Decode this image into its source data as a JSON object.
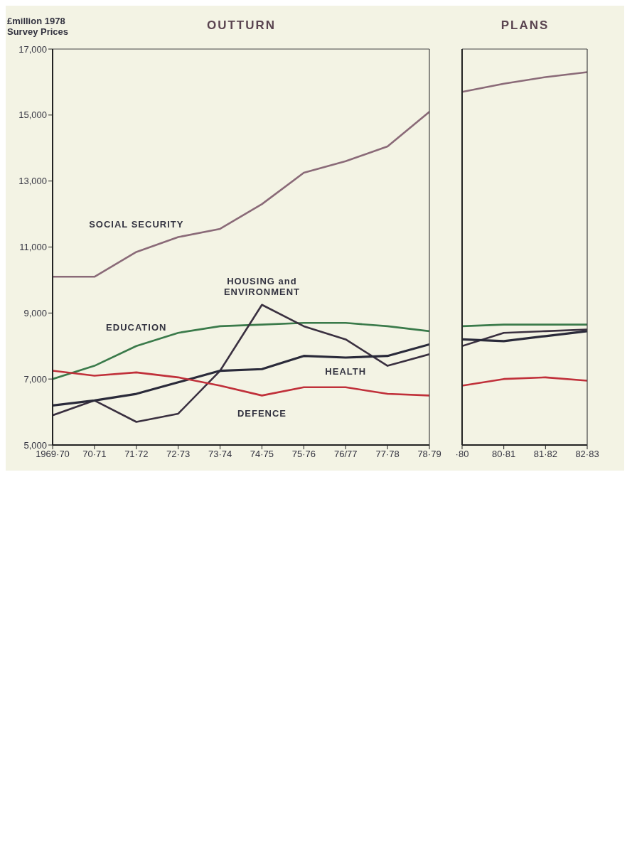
{
  "chart_data": [
    {
      "type": "line",
      "title": "OUTTURN",
      "ylabel": "£million 1978 Survey Prices",
      "categories": [
        "1969·70",
        "70·71",
        "71·72",
        "72·73",
        "73·74",
        "74·75",
        "75·76",
        "76/77",
        "77·78",
        "78·79"
      ],
      "ylim": [
        5000,
        17000
      ],
      "yticks": [
        {
          "value": 5000,
          "label": "5,000"
        },
        {
          "value": 7000,
          "label": "7,000"
        },
        {
          "value": 9000,
          "label": "9,000"
        },
        {
          "value": 11000,
          "label": "11,000"
        },
        {
          "value": 13000,
          "label": "13,000"
        },
        {
          "value": 15000,
          "label": "15,000"
        },
        {
          "value": 17000,
          "label": "17,000"
        }
      ],
      "marker": "none",
      "series": [
        {
          "name": "SOCIAL SECURITY",
          "color": "#8a6a78",
          "values": [
            10100,
            10100,
            10850,
            11300,
            11550,
            12300,
            13250,
            13600,
            14050,
            15100
          ]
        },
        {
          "name": "EDUCATION",
          "color": "#3a7a4a",
          "values": [
            7000,
            7400,
            8000,
            8400,
            8600,
            8650,
            8700,
            8700,
            8600,
            8450
          ]
        },
        {
          "name": "HOUSING and ENVIRONMENT",
          "color": "#3a3040",
          "values": [
            5900,
            6350,
            5700,
            5950,
            7250,
            9250,
            8600,
            8200,
            7400,
            7750
          ]
        },
        {
          "name": "HEALTH",
          "color": "#2a2a3a",
          "values": [
            6200,
            6350,
            6550,
            6900,
            7250,
            7300,
            7700,
            7650,
            7700,
            8050
          ]
        },
        {
          "name": "DEFENCE",
          "color": "#c0303a",
          "values": [
            7250,
            7100,
            7200,
            7050,
            6800,
            6500,
            6750,
            6750,
            6550,
            6500
          ]
        }
      ]
    },
    {
      "type": "line",
      "title": "PLANS",
      "categories": [
        "·80",
        "80·81",
        "81·82",
        "82·83"
      ],
      "ylim": [
        5000,
        17000
      ],
      "tick_labels": "x",
      "marker": "none",
      "series": [
        {
          "color": "#8a6a78",
          "values": [
            15700,
            15950,
            16150,
            16300
          ]
        },
        {
          "color": "#3a7a4a",
          "values": [
            8600,
            8650,
            8650,
            8650
          ]
        },
        {
          "color": "#3a3040",
          "values": [
            8000,
            8400,
            8450,
            8500
          ]
        },
        {
          "color": "#2a2a3a",
          "values": [
            8200,
            8150,
            8300,
            8450
          ]
        },
        {
          "color": "#c0303a",
          "values": [
            6800,
            7000,
            7050,
            6950
          ]
        }
      ]
    }
  ]
}
